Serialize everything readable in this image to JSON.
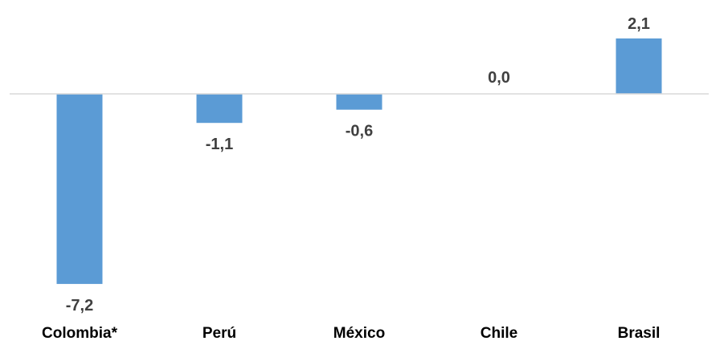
{
  "chart_data": {
    "type": "bar",
    "categories": [
      "Colombia*",
      "Perú",
      "México",
      "Chile",
      "Brasil"
    ],
    "values": [
      -7.2,
      -1.1,
      -0.6,
      0.0,
      2.1
    ],
    "value_labels": [
      "-7,2",
      "-1,1",
      "-0,6",
      "0,0",
      "2,1"
    ],
    "title": "",
    "xlabel": "",
    "ylabel": "",
    "grid": false,
    "legend": "none",
    "bar_color": "#5b9bd5",
    "zero_line_color": "#d9d9d9",
    "text_color": "#404040"
  }
}
